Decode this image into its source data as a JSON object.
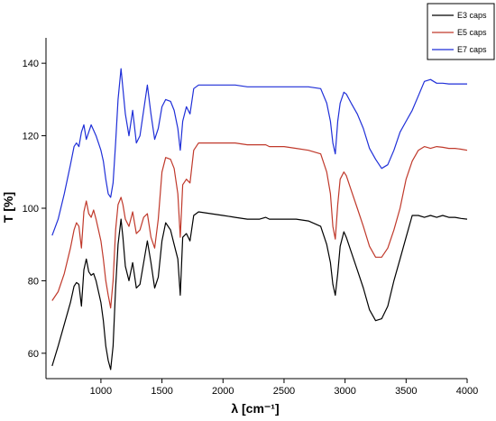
{
  "chart_data": {
    "type": "line",
    "xlabel": "λ [cm⁻¹]",
    "ylabel": "T [%]",
    "xlim": [
      550,
      4000
    ],
    "ylim": [
      53,
      147
    ],
    "xticks": [
      1000,
      1500,
      2000,
      2500,
      3000,
      3500,
      4000
    ],
    "yticks": [
      60,
      80,
      100,
      120,
      140
    ],
    "grid": false,
    "legend": "top-right",
    "series": [
      {
        "name": "E3 caps",
        "color": "#000000",
        "x": [
          600,
          650,
          700,
          750,
          780,
          800,
          820,
          840,
          860,
          880,
          900,
          920,
          940,
          960,
          980,
          1000,
          1020,
          1040,
          1060,
          1080,
          1100,
          1120,
          1140,
          1165,
          1180,
          1200,
          1230,
          1260,
          1290,
          1320,
          1350,
          1380,
          1410,
          1440,
          1470,
          1500,
          1530,
          1570,
          1600,
          1630,
          1650,
          1670,
          1700,
          1730,
          1760,
          1800,
          1900,
          2000,
          2100,
          2200,
          2300,
          2350,
          2380,
          2450,
          2500,
          2600,
          2700,
          2800,
          2850,
          2880,
          2900,
          2920,
          2940,
          2960,
          2990,
          3010,
          3050,
          3100,
          3150,
          3200,
          3250,
          3300,
          3350,
          3400,
          3450,
          3500,
          3550,
          3600,
          3650,
          3700,
          3750,
          3800,
          3850,
          3900,
          3950,
          4000
        ],
        "y": [
          56.5,
          62,
          68,
          74,
          78.5,
          79.5,
          79,
          73,
          83,
          86,
          82.5,
          81.5,
          82,
          80,
          77,
          74,
          69,
          62,
          58,
          55.5,
          62,
          78,
          90,
          97,
          92,
          84,
          80,
          85,
          78,
          79,
          85,
          91,
          85,
          78,
          81,
          91,
          96,
          94,
          90,
          86,
          76,
          92,
          93,
          91,
          98,
          99,
          98.5,
          98,
          97.5,
          97,
          97,
          97.5,
          97,
          97,
          97,
          97,
          96.5,
          95,
          90,
          85,
          79,
          76,
          82,
          89.5,
          93.5,
          92,
          88,
          83,
          78,
          72,
          69,
          69.5,
          73,
          80,
          86,
          92,
          98,
          98,
          97.5,
          98,
          97.5,
          98,
          97.5,
          97.5,
          97.2,
          97
        ]
      },
      {
        "name": "E5 caps",
        "color": "#c0392b",
        "x": [
          600,
          650,
          700,
          750,
          780,
          800,
          820,
          840,
          860,
          880,
          900,
          920,
          940,
          960,
          980,
          1000,
          1020,
          1040,
          1060,
          1080,
          1100,
          1120,
          1140,
          1165,
          1180,
          1200,
          1230,
          1260,
          1290,
          1320,
          1350,
          1380,
          1410,
          1440,
          1470,
          1500,
          1530,
          1570,
          1600,
          1630,
          1650,
          1670,
          1700,
          1730,
          1760,
          1800,
          1900,
          2000,
          2100,
          2200,
          2300,
          2350,
          2380,
          2450,
          2500,
          2600,
          2700,
          2800,
          2850,
          2880,
          2900,
          2920,
          2940,
          2960,
          2990,
          3010,
          3050,
          3100,
          3150,
          3200,
          3250,
          3300,
          3350,
          3400,
          3450,
          3500,
          3550,
          3600,
          3650,
          3700,
          3750,
          3800,
          3850,
          3900,
          3950,
          4000
        ],
        "y": [
          74.5,
          77,
          82,
          89,
          94,
          96,
          95,
          89,
          99,
          102,
          98.5,
          97.5,
          99.5,
          97,
          94,
          91,
          86,
          80,
          76,
          72.5,
          80,
          94,
          101,
          103,
          101,
          97,
          95,
          99,
          93,
          94,
          97.5,
          98.5,
          92,
          89,
          97,
          110,
          114,
          113.5,
          111,
          104,
          92,
          106.5,
          108,
          107,
          116,
          118,
          118,
          118,
          118,
          117.5,
          117.5,
          117.5,
          117,
          117,
          117,
          116.5,
          116,
          115,
          110,
          104,
          95,
          91.5,
          101,
          108,
          110,
          109,
          105,
          100,
          95,
          89.5,
          86.5,
          86.5,
          89,
          94,
          100,
          108,
          113,
          116,
          117,
          116.5,
          117,
          116.8,
          116.5,
          116.5,
          116.3,
          116
        ]
      },
      {
        "name": "E7 caps",
        "color": "#1f2fd8",
        "x": [
          600,
          650,
          700,
          750,
          780,
          800,
          820,
          840,
          860,
          880,
          900,
          920,
          940,
          960,
          980,
          1000,
          1020,
          1040,
          1060,
          1080,
          1100,
          1120,
          1140,
          1165,
          1180,
          1200,
          1230,
          1260,
          1290,
          1320,
          1350,
          1380,
          1410,
          1440,
          1470,
          1500,
          1530,
          1570,
          1600,
          1630,
          1650,
          1670,
          1700,
          1730,
          1760,
          1800,
          1900,
          2000,
          2100,
          2200,
          2300,
          2350,
          2380,
          2450,
          2500,
          2600,
          2700,
          2800,
          2850,
          2880,
          2900,
          2920,
          2940,
          2960,
          2990,
          3010,
          3050,
          3100,
          3150,
          3200,
          3250,
          3300,
          3350,
          3400,
          3450,
          3500,
          3550,
          3600,
          3650,
          3700,
          3750,
          3800,
          3850,
          3900,
          3950,
          4000
        ],
        "y": [
          92.5,
          97,
          104,
          112,
          117,
          118,
          117,
          121,
          123,
          119,
          121,
          123,
          121.5,
          120,
          118,
          116,
          113,
          108,
          104,
          103,
          107,
          118,
          130,
          138.5,
          133,
          126,
          120,
          127,
          118,
          120,
          127,
          134,
          126,
          119,
          122,
          128,
          130,
          129.5,
          127,
          122,
          116,
          124,
          128,
          126,
          133,
          134,
          134,
          134,
          134,
          133.5,
          133.5,
          133.5,
          133.5,
          133.5,
          133.5,
          133.5,
          133.5,
          133,
          129,
          124,
          118,
          115,
          124,
          129,
          132,
          131.5,
          129,
          126,
          122,
          116.5,
          113.5,
          111,
          112,
          116,
          121,
          124,
          127,
          131,
          135,
          135.5,
          134.5,
          134.5,
          134.3,
          134.3,
          134.3,
          134.3
        ]
      }
    ]
  }
}
